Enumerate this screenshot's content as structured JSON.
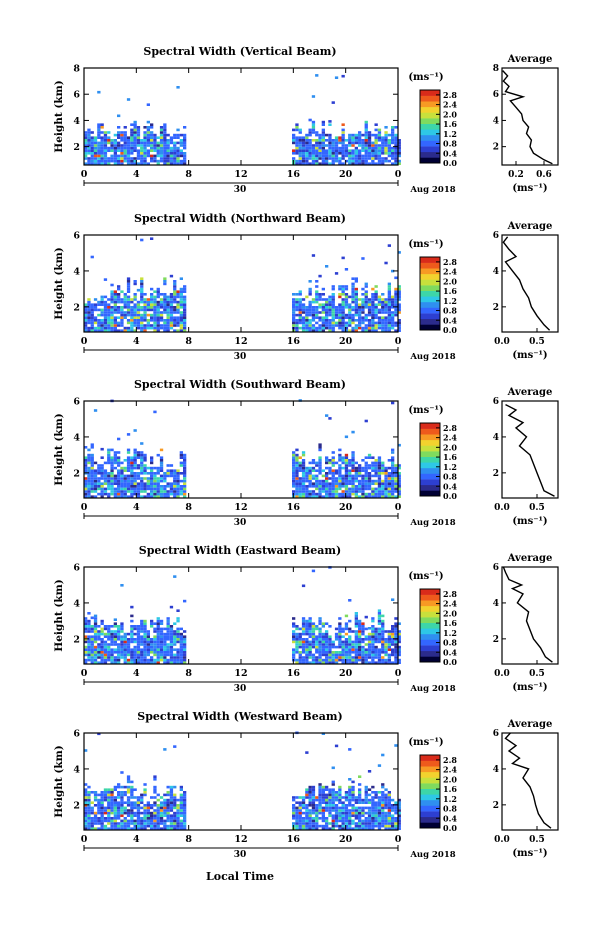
{
  "figure": {
    "x_axis_label": "Local Time",
    "date_label": "Aug 2018",
    "day_label": "30",
    "y_axis_label": "Height (km)",
    "unit_label": "(ms⁻¹)",
    "avg_title": "Average"
  },
  "colors": {
    "scale": [
      "#000033",
      "#2b2b8c",
      "#2d3fd1",
      "#3366ff",
      "#2f8ff0",
      "#2ec8e6",
      "#3dd6a8",
      "#7fdb5e",
      "#c8e03c",
      "#f2d22e",
      "#f79a24",
      "#ee5a1c",
      "#d92b1a"
    ]
  },
  "chart_data": [
    {
      "type": "heatmap",
      "title": "Spectral Width (Vertical Beam)",
      "xlabel": "Local Time",
      "ylabel": "Height (km)",
      "x_ticks": [
        "0",
        "4",
        "8",
        "12",
        "16",
        "20",
        "0"
      ],
      "y_ticks": [
        "2",
        "4",
        "6",
        "8"
      ],
      "xlim": [
        0,
        24
      ],
      "ylim": [
        0.6,
        8.0
      ],
      "data_coverage": [
        {
          "from": 0,
          "to": 7.6
        },
        {
          "from": 15.9,
          "to": 24
        }
      ],
      "colorbar": {
        "ticks": [
          "0.0",
          "0.4",
          "0.8",
          "1.2",
          "1.6",
          "2.0",
          "2.4",
          "2.8"
        ],
        "range": [
          0,
          3.0
        ]
      },
      "average_profile": {
        "x_ticks": [
          "0.2",
          "0.6"
        ],
        "xlim": [
          0,
          0.8
        ],
        "y_ticks": [
          "2",
          "4",
          "6",
          "8"
        ],
        "ylim": [
          0.6,
          8.0
        ],
        "points": [
          [
            0.72,
            0.7
          ],
          [
            0.6,
            1.0
          ],
          [
            0.45,
            1.5
          ],
          [
            0.4,
            2.0
          ],
          [
            0.42,
            2.5
          ],
          [
            0.35,
            3.0
          ],
          [
            0.38,
            3.5
          ],
          [
            0.3,
            4.0
          ],
          [
            0.28,
            4.5
          ],
          [
            0.2,
            5.0
          ],
          [
            0.12,
            5.5
          ],
          [
            0.3,
            5.8
          ],
          [
            0.05,
            6.2
          ],
          [
            0.1,
            6.6
          ],
          [
            0.02,
            7.0
          ],
          [
            0.08,
            7.4
          ],
          [
            0.01,
            7.8
          ]
        ]
      }
    },
    {
      "type": "heatmap",
      "title": "Spectral Width (Northward Beam)",
      "xlabel": "Local Time",
      "ylabel": "Height (km)",
      "x_ticks": [
        "0",
        "4",
        "8",
        "12",
        "16",
        "20",
        "0"
      ],
      "y_ticks": [
        "2",
        "4",
        "6"
      ],
      "xlim": [
        0,
        24
      ],
      "ylim": [
        0.6,
        6.0
      ],
      "data_coverage": [
        {
          "from": 0,
          "to": 7.6
        },
        {
          "from": 15.9,
          "to": 24
        }
      ],
      "colorbar": {
        "ticks": [
          "0.0",
          "0.4",
          "0.8",
          "1.2",
          "1.6",
          "2.0",
          "2.4",
          "2.8"
        ],
        "range": [
          0,
          3.0
        ]
      },
      "average_profile": {
        "x_ticks": [
          "0.0",
          "0.5"
        ],
        "xlim": [
          0,
          0.8
        ],
        "y_ticks": [
          "2",
          "4",
          "6"
        ],
        "ylim": [
          0.6,
          6.0
        ],
        "points": [
          [
            0.68,
            0.7
          ],
          [
            0.6,
            1.0
          ],
          [
            0.5,
            1.5
          ],
          [
            0.42,
            2.0
          ],
          [
            0.38,
            2.5
          ],
          [
            0.3,
            3.0
          ],
          [
            0.25,
            3.5
          ],
          [
            0.15,
            4.0
          ],
          [
            0.05,
            4.5
          ],
          [
            0.2,
            4.8
          ],
          [
            0.1,
            5.2
          ],
          [
            0.02,
            5.6
          ],
          [
            0.08,
            5.9
          ]
        ]
      }
    },
    {
      "type": "heatmap",
      "title": "Spectral Width (Southward Beam)",
      "xlabel": "Local Time",
      "ylabel": "Height (km)",
      "x_ticks": [
        "0",
        "4",
        "8",
        "12",
        "16",
        "20",
        "0"
      ],
      "y_ticks": [
        "2",
        "4",
        "6"
      ],
      "xlim": [
        0,
        24
      ],
      "ylim": [
        0.6,
        6.0
      ],
      "data_coverage": [
        {
          "from": 0,
          "to": 7.6
        },
        {
          "from": 15.9,
          "to": 24
        }
      ],
      "colorbar": {
        "ticks": [
          "0.0",
          "0.4",
          "0.8",
          "1.2",
          "1.6",
          "2.0",
          "2.4",
          "2.8"
        ],
        "range": [
          0,
          3.0
        ]
      },
      "average_profile": {
        "x_ticks": [
          "0.0",
          "0.5"
        ],
        "xlim": [
          0,
          0.8
        ],
        "y_ticks": [
          "2",
          "4",
          "6"
        ],
        "ylim": [
          0.6,
          6.0
        ],
        "points": [
          [
            0.75,
            0.7
          ],
          [
            0.6,
            1.0
          ],
          [
            0.55,
            1.5
          ],
          [
            0.5,
            2.0
          ],
          [
            0.45,
            2.5
          ],
          [
            0.4,
            3.0
          ],
          [
            0.25,
            3.5
          ],
          [
            0.35,
            4.0
          ],
          [
            0.2,
            4.5
          ],
          [
            0.3,
            4.8
          ],
          [
            0.1,
            5.2
          ],
          [
            0.2,
            5.5
          ],
          [
            0.05,
            5.8
          ]
        ]
      }
    },
    {
      "type": "heatmap",
      "title": "Spectral Width (Eastward Beam)",
      "xlabel": "Local Time",
      "ylabel": "Height (km)",
      "x_ticks": [
        "0",
        "4",
        "8",
        "12",
        "16",
        "20",
        "0"
      ],
      "y_ticks": [
        "2",
        "4",
        "6"
      ],
      "xlim": [
        0,
        24
      ],
      "ylim": [
        0.6,
        6.0
      ],
      "data_coverage": [
        {
          "from": 0,
          "to": 7.6
        },
        {
          "from": 15.9,
          "to": 24
        }
      ],
      "colorbar": {
        "ticks": [
          "0.0",
          "0.4",
          "0.8",
          "1.2",
          "1.6",
          "2.0",
          "2.4",
          "2.8"
        ],
        "range": [
          0,
          3.0
        ]
      },
      "average_profile": {
        "x_ticks": [
          "0.0",
          "0.5"
        ],
        "xlim": [
          0,
          0.8
        ],
        "y_ticks": [
          "2",
          "4",
          "6"
        ],
        "ylim": [
          0.6,
          6.0
        ],
        "points": [
          [
            0.72,
            0.7
          ],
          [
            0.62,
            1.0
          ],
          [
            0.55,
            1.5
          ],
          [
            0.45,
            2.0
          ],
          [
            0.4,
            2.5
          ],
          [
            0.35,
            3.0
          ],
          [
            0.38,
            3.5
          ],
          [
            0.22,
            4.0
          ],
          [
            0.3,
            4.5
          ],
          [
            0.15,
            4.8
          ],
          [
            0.28,
            5.0
          ],
          [
            0.1,
            5.3
          ],
          [
            0.05,
            5.7
          ],
          [
            0.02,
            6.0
          ]
        ]
      }
    },
    {
      "type": "heatmap",
      "title": "Spectral Width (Westward Beam)",
      "xlabel": "Local Time",
      "ylabel": "Height (km)",
      "x_ticks": [
        "0",
        "4",
        "8",
        "12",
        "16",
        "20",
        "0"
      ],
      "y_ticks": [
        "2",
        "4",
        "6"
      ],
      "xlim": [
        0,
        24
      ],
      "ylim": [
        0.6,
        6.0
      ],
      "data_coverage": [
        {
          "from": 0,
          "to": 7.6
        },
        {
          "from": 15.9,
          "to": 24
        }
      ],
      "colorbar": {
        "ticks": [
          "0.0",
          "0.4",
          "0.8",
          "1.2",
          "1.6",
          "2.0",
          "2.4",
          "2.8"
        ],
        "range": [
          0,
          3.0
        ]
      },
      "average_profile": {
        "x_ticks": [
          "0.0",
          "0.5"
        ],
        "xlim": [
          0,
          0.8
        ],
        "y_ticks": [
          "2",
          "4",
          "6"
        ],
        "ylim": [
          0.6,
          6.0
        ],
        "points": [
          [
            0.7,
            0.7
          ],
          [
            0.6,
            1.0
          ],
          [
            0.52,
            1.5
          ],
          [
            0.48,
            2.0
          ],
          [
            0.45,
            2.5
          ],
          [
            0.4,
            3.0
          ],
          [
            0.3,
            3.5
          ],
          [
            0.38,
            4.0
          ],
          [
            0.15,
            4.3
          ],
          [
            0.25,
            4.6
          ],
          [
            0.1,
            5.0
          ],
          [
            0.2,
            5.3
          ],
          [
            0.05,
            5.7
          ],
          [
            0.12,
            6.0
          ]
        ]
      }
    }
  ]
}
